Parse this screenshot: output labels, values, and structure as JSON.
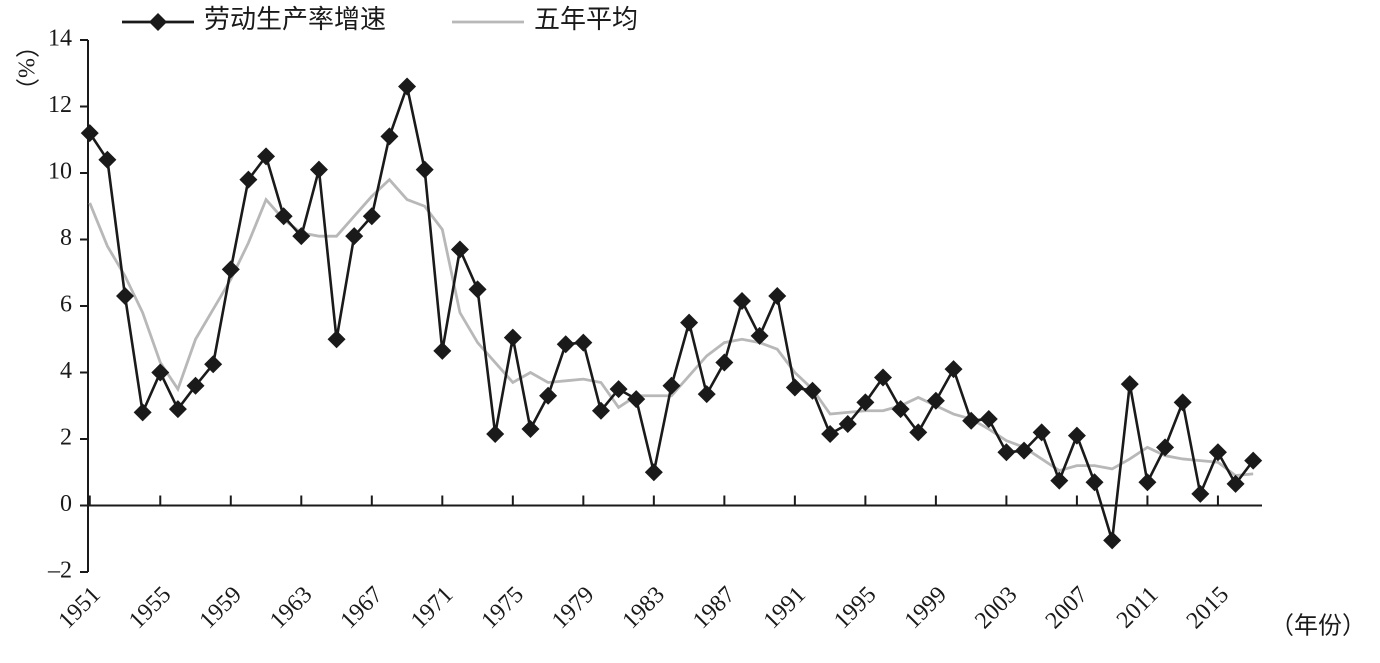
{
  "chart_data": {
    "type": "line",
    "y_label": "（%）",
    "x_label": "（年份）",
    "x": [
      1951,
      1952,
      1953,
      1954,
      1955,
      1956,
      1957,
      1958,
      1959,
      1960,
      1961,
      1962,
      1963,
      1964,
      1965,
      1966,
      1967,
      1968,
      1969,
      1970,
      1971,
      1972,
      1973,
      1974,
      1975,
      1976,
      1977,
      1978,
      1979,
      1980,
      1981,
      1982,
      1983,
      1984,
      1985,
      1986,
      1987,
      1988,
      1989,
      1990,
      1991,
      1992,
      1993,
      1994,
      1995,
      1996,
      1997,
      1998,
      1999,
      2000,
      2001,
      2002,
      2003,
      2004,
      2005,
      2006,
      2007,
      2008,
      2009,
      2010,
      2011,
      2012,
      2013,
      2014,
      2015,
      2016,
      2017
    ],
    "series": [
      {
        "name": "劳动生产率增速",
        "color": "#1a1a1a",
        "marker": "diamond",
        "values": [
          11.2,
          10.4,
          6.3,
          2.8,
          4.0,
          2.9,
          3.6,
          4.25,
          7.1,
          9.8,
          10.5,
          8.7,
          8.1,
          10.1,
          5.0,
          8.1,
          8.7,
          11.1,
          12.6,
          10.1,
          4.65,
          7.7,
          6.5,
          2.15,
          5.05,
          2.3,
          3.3,
          4.85,
          4.9,
          2.85,
          3.5,
          3.2,
          1.0,
          3.6,
          5.5,
          3.35,
          4.3,
          6.15,
          5.1,
          6.3,
          3.55,
          3.45,
          2.15,
          2.45,
          3.1,
          3.85,
          2.9,
          2.2,
          3.15,
          4.1,
          2.55,
          2.6,
          1.6,
          1.65,
          2.2,
          0.75,
          2.1,
          0.7,
          -1.05,
          3.65,
          0.7,
          1.75,
          3.1,
          0.35,
          1.6,
          0.65,
          1.35
        ]
      },
      {
        "name": "五年平均",
        "color": "#b8b8b8",
        "values": [
          9.1,
          7.8,
          6.9,
          5.8,
          4.3,
          3.5,
          5.0,
          5.9,
          6.8,
          7.9,
          9.2,
          8.6,
          8.2,
          8.1,
          8.1,
          8.7,
          9.3,
          9.8,
          9.2,
          9.0,
          8.3,
          5.8,
          4.9,
          4.3,
          3.7,
          4.0,
          3.7,
          3.75,
          3.8,
          3.7,
          2.95,
          3.3,
          3.3,
          3.3,
          3.9,
          4.5,
          4.9,
          5.0,
          4.9,
          4.7,
          4.0,
          3.5,
          2.75,
          2.8,
          2.85,
          2.85,
          3.0,
          3.25,
          3.0,
          2.75,
          2.6,
          2.3,
          1.95,
          1.75,
          1.4,
          1.05,
          1.2,
          1.2,
          1.1,
          1.4,
          1.75,
          1.5,
          1.4,
          1.35,
          1.3,
          0.9,
          0.95
        ]
      }
    ],
    "xlim": [
      1950.9,
      2017.5
    ],
    "xticks": [
      1951,
      1955,
      1959,
      1963,
      1967,
      1971,
      1975,
      1979,
      1983,
      1987,
      1991,
      1995,
      1999,
      2003,
      2007,
      2011,
      2015
    ],
    "ylim": [
      -2,
      14
    ],
    "yticks": [
      {
        "value": -2,
        "label": "–2"
      },
      0,
      2,
      4,
      6,
      8,
      10,
      12,
      14
    ],
    "grid": false,
    "legend": "top"
  }
}
